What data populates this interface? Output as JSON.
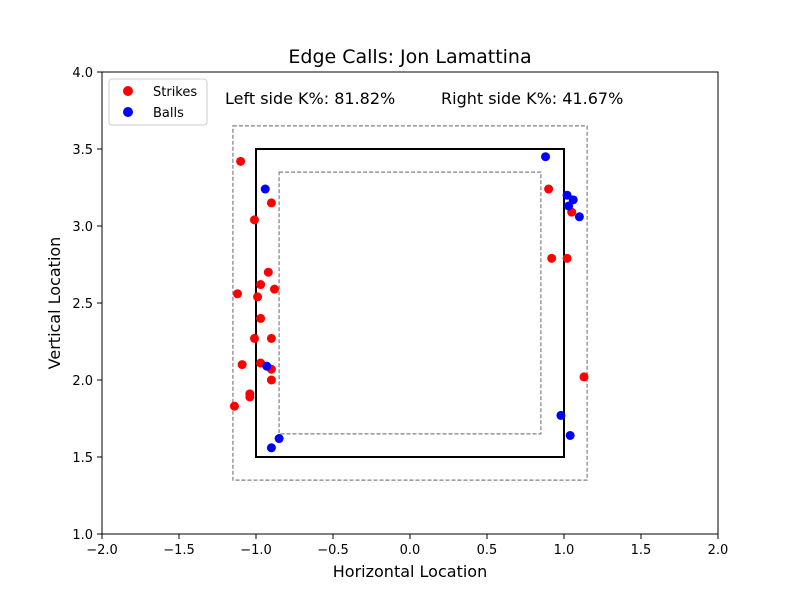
{
  "chart_data": {
    "type": "scatter",
    "title": "Edge Calls: Jon Lamattina",
    "xlabel": "Horizontal Location",
    "ylabel": "Vertical Location",
    "xlim": [
      -2.0,
      2.0
    ],
    "ylim": [
      1.0,
      4.0
    ],
    "x_ticks": [
      "−2.0",
      "−1.5",
      "−1.0",
      "−0.5",
      "0.0",
      "0.5",
      "1.0",
      "1.5",
      "2.0"
    ],
    "y_ticks": [
      "1.0",
      "1.5",
      "2.0",
      "2.5",
      "3.0",
      "3.5",
      "4.0"
    ],
    "x_tick_values": [
      -2.0,
      -1.5,
      -1.0,
      -0.5,
      0.0,
      0.5,
      1.0,
      1.5,
      2.0
    ],
    "y_tick_values": [
      1.0,
      1.5,
      2.0,
      2.5,
      3.0,
      3.5,
      4.0
    ],
    "grid": false,
    "legend_position": "top-left",
    "annotations": {
      "left": "Left side K%: 81.82%",
      "right": "Right side K%: 41.67%"
    },
    "zones": {
      "strike_zone": {
        "x": [
          -1.0,
          1.0
        ],
        "y": [
          1.5,
          3.5
        ],
        "color": "#000000",
        "style": "solid"
      },
      "outer_zone": {
        "x": [
          -1.15,
          1.15
        ],
        "y": [
          1.35,
          3.65
        ],
        "color": "#808080",
        "style": "dashed"
      },
      "inner_zone": {
        "x": [
          -0.85,
          0.85
        ],
        "y": [
          1.65,
          3.35
        ],
        "color": "#808080",
        "style": "dashed"
      }
    },
    "series": [
      {
        "name": "Strikes",
        "color": "#ff0000",
        "points": [
          [
            -1.1,
            3.42
          ],
          [
            -1.01,
            3.04
          ],
          [
            -0.9,
            3.15
          ],
          [
            -0.92,
            2.7
          ],
          [
            -0.97,
            2.62
          ],
          [
            -0.88,
            2.59
          ],
          [
            -1.12,
            2.56
          ],
          [
            -0.99,
            2.54
          ],
          [
            -0.97,
            2.4
          ],
          [
            -1.01,
            2.27
          ],
          [
            -0.9,
            2.27
          ],
          [
            -1.09,
            2.1
          ],
          [
            -0.97,
            2.11
          ],
          [
            -0.9,
            2.07
          ],
          [
            -0.9,
            2.0
          ],
          [
            -1.04,
            1.91
          ],
          [
            -1.04,
            1.89
          ],
          [
            -1.14,
            1.83
          ],
          [
            0.9,
            3.24
          ],
          [
            1.05,
            3.09
          ],
          [
            0.92,
            2.79
          ],
          [
            1.02,
            2.79
          ],
          [
            1.13,
            2.02
          ]
        ]
      },
      {
        "name": "Balls",
        "color": "#0000ff",
        "points": [
          [
            -0.94,
            3.24
          ],
          [
            -0.93,
            2.09
          ],
          [
            -0.85,
            1.62
          ],
          [
            -0.9,
            1.56
          ],
          [
            0.88,
            3.45
          ],
          [
            1.02,
            3.2
          ],
          [
            1.06,
            3.17
          ],
          [
            1.03,
            3.13
          ],
          [
            1.1,
            3.06
          ],
          [
            0.98,
            1.77
          ],
          [
            1.04,
            1.64
          ]
        ]
      }
    ]
  }
}
